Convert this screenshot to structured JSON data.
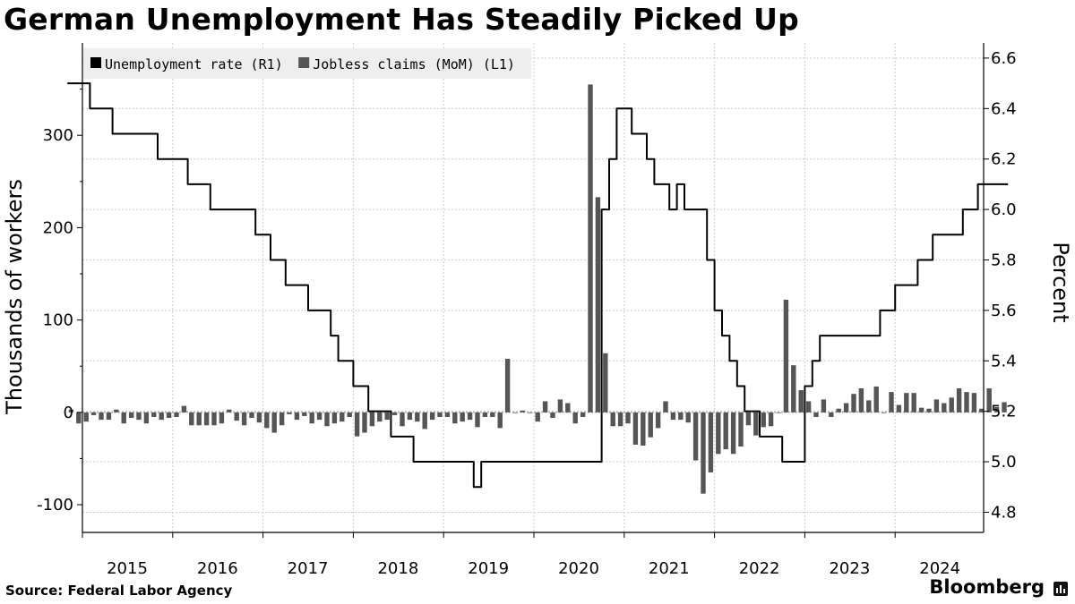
{
  "title": "German Unemployment Has Steadily Picked Up",
  "source": "Source: Federal Labor Agency",
  "brand": "Bloomberg",
  "colors": {
    "line": "#000000",
    "bars": "#555555",
    "grid": "#cccccc",
    "legend_bg": "#eeeeee"
  },
  "chart_data": {
    "type": "bar+line",
    "x_start": "2014-11",
    "x_end": "2024-12",
    "years": [
      "2015",
      "2016",
      "2017",
      "2018",
      "2019",
      "2020",
      "2021",
      "2022",
      "2023",
      "2024"
    ],
    "legend": [
      {
        "label": "Unemployment rate (R1)",
        "color": "#000000"
      },
      {
        "label": "Jobless claims (MoM) (L1)",
        "color": "#555555"
      }
    ],
    "left_axis": {
      "label": "Thousands of workers",
      "range": [
        -130,
        400
      ],
      "ticks": [
        -100,
        0,
        100,
        200,
        300
      ]
    },
    "right_axis": {
      "label": "Percent",
      "range": [
        4.72,
        6.66
      ],
      "ticks": [
        "4.8",
        "5.0",
        "5.2",
        "5.4",
        "5.6",
        "5.8",
        "6.0",
        "6.2",
        "6.4",
        "6.6"
      ]
    },
    "series": [
      {
        "name": "Jobless claims (MoM) (L1)",
        "axis": "left",
        "type": "bar",
        "values": [
          3,
          -12,
          -10,
          -3,
          -8,
          -8,
          3,
          -12,
          -6,
          -8,
          -12,
          -5,
          -8,
          -6,
          -5,
          7,
          -14,
          -14,
          -14,
          -14,
          -12,
          3,
          -9,
          -14,
          -6,
          -11,
          -17,
          -22,
          -14,
          -2,
          -8,
          -4,
          -12,
          -8,
          -15,
          -12,
          -10,
          -5,
          -26,
          -22,
          -15,
          -10,
          -8,
          -3,
          -15,
          -8,
          -10,
          -18,
          -8,
          -5,
          -5,
          -12,
          -10,
          -8,
          -16,
          -5,
          -5,
          -17,
          58,
          0,
          2,
          0,
          -10,
          12,
          -6,
          14,
          10,
          -12,
          -5,
          355,
          233,
          64,
          -15,
          -15,
          -12,
          -35,
          -36,
          -27,
          -17,
          12,
          -8,
          -8,
          -11,
          -52,
          -88,
          -65,
          -45,
          -40,
          -45,
          -37,
          -14,
          -25,
          -16,
          -15,
          0,
          122,
          51,
          24,
          12,
          -5,
          14,
          -5,
          4,
          10,
          20,
          26,
          13,
          28,
          0,
          22,
          8,
          21,
          21,
          5,
          4,
          14,
          10,
          16,
          26,
          22,
          21,
          4,
          26,
          6,
          11
        ]
      },
      {
        "name": "Unemployment rate (R1)",
        "axis": "right",
        "type": "line",
        "values": [
          6.5,
          6.5,
          6.5,
          6.4,
          6.4,
          6.4,
          6.3,
          6.3,
          6.3,
          6.3,
          6.3,
          6.3,
          6.2,
          6.2,
          6.2,
          6.2,
          6.1,
          6.1,
          6.1,
          6.0,
          6.0,
          6.0,
          6.0,
          6.0,
          6.0,
          5.9,
          5.9,
          5.8,
          5.8,
          5.7,
          5.7,
          5.7,
          5.6,
          5.6,
          5.6,
          5.5,
          5.4,
          5.4,
          5.3,
          5.3,
          5.2,
          5.2,
          5.2,
          5.1,
          5.1,
          5.1,
          5.0,
          5.0,
          5.0,
          5.0,
          5.0,
          5.0,
          5.0,
          5.0,
          4.9,
          5.0,
          5.0,
          5.0,
          5.0,
          5.0,
          5.0,
          5.0,
          5.0,
          5.0,
          5.0,
          5.0,
          5.0,
          5.0,
          5.0,
          5.0,
          5.0,
          6.0,
          6.2,
          6.4,
          6.4,
          6.3,
          6.3,
          6.2,
          6.1,
          6.1,
          6.0,
          6.1,
          6.0,
          6.0,
          6.0,
          5.8,
          5.6,
          5.5,
          5.4,
          5.3,
          5.2,
          5.2,
          5.1,
          5.1,
          5.1,
          5.0,
          5.0,
          5.0,
          5.3,
          5.4,
          5.5,
          5.5,
          5.5,
          5.5,
          5.5,
          5.5,
          5.5,
          5.5,
          5.6,
          5.6,
          5.7,
          5.7,
          5.7,
          5.8,
          5.8,
          5.9,
          5.9,
          5.9,
          5.9,
          6.0,
          6.0,
          6.1,
          6.1,
          6.1,
          6.1
        ]
      }
    ]
  }
}
